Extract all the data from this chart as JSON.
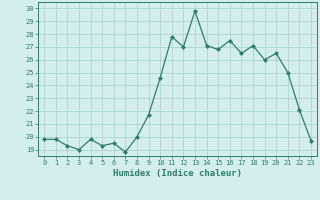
{
  "x": [
    0,
    1,
    2,
    3,
    4,
    5,
    6,
    7,
    8,
    9,
    10,
    11,
    12,
    13,
    14,
    15,
    16,
    17,
    18,
    19,
    20,
    21,
    22,
    23
  ],
  "y": [
    19.8,
    19.8,
    19.3,
    19.0,
    19.8,
    19.3,
    19.5,
    18.8,
    20.0,
    21.7,
    24.6,
    27.8,
    27.0,
    29.8,
    27.1,
    26.8,
    27.5,
    26.5,
    27.1,
    26.0,
    26.5,
    25.0,
    22.1,
    19.7
  ],
  "line_color": "#2e7d6e",
  "marker": "D",
  "marker_size": 2.0,
  "bg_color": "#d4eeee",
  "grid_color": "#aed4d4",
  "xlabel": "Humidex (Indice chaleur)",
  "xlim": [
    -0.5,
    23.5
  ],
  "ylim": [
    18.5,
    30.5
  ],
  "yticks": [
    19,
    20,
    21,
    22,
    23,
    24,
    25,
    26,
    27,
    28,
    29,
    30
  ],
  "xticks": [
    0,
    1,
    2,
    3,
    4,
    5,
    6,
    7,
    8,
    9,
    10,
    11,
    12,
    13,
    14,
    15,
    16,
    17,
    18,
    19,
    20,
    21,
    22,
    23
  ],
  "tick_color": "#2e7d6e",
  "label_color": "#2e7d6e",
  "spine_color": "#2e7d6e",
  "tick_fontsize": 5.0,
  "xlabel_fontsize": 6.5
}
